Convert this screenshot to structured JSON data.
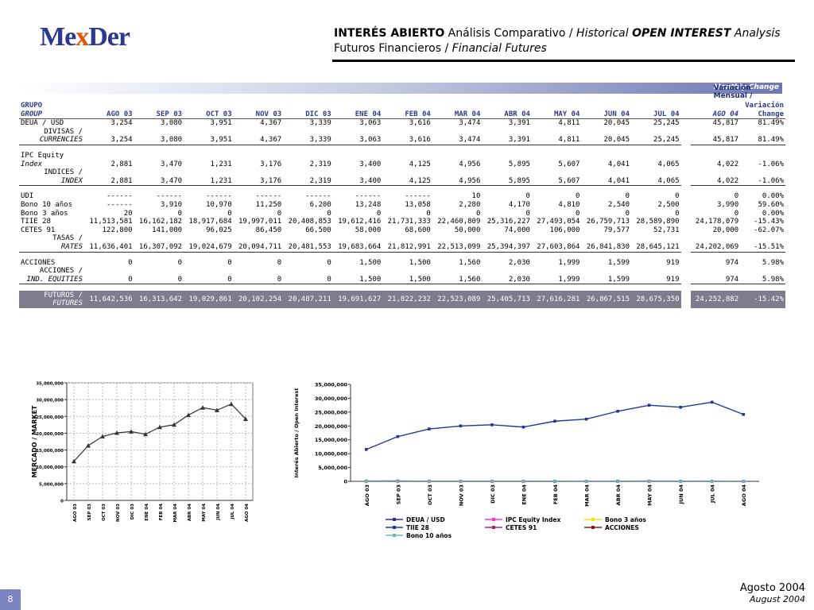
{
  "logo": {
    "p1": "Me",
    "x": "x",
    "p2": "Der"
  },
  "header": {
    "b1": "INTERÉS ABIERTO",
    "n1": " Análisis Comparativo / ",
    "i1": "Historical ",
    "b2": "OPEN INTEREST",
    "i2": " Analysis",
    "line2a": "Futuros Financieros / ",
    "line2b": "Financial Futures"
  },
  "banner": {
    "es": "Variación Mensual / ",
    "en": "Monthly Change"
  },
  "table": {
    "h1": [
      "GRUPO",
      "Variación"
    ],
    "h2": [
      "GROUP",
      "AGO 03",
      "SEP 03",
      "OCT 03",
      "NOV 03",
      "DIC 03",
      "ENE 04",
      "FEB 04",
      "MAR 04",
      "ABR 04",
      "MAY 04",
      "JUN 04",
      "JUL 04",
      "AGO 04",
      "Change"
    ],
    "rows": [
      {
        "cls": "",
        "a": "DEUA / USD",
        "v": [
          "3,254",
          "3,080",
          "3,951",
          "4,367",
          "3,339",
          "3,063",
          "3,616",
          "3,474",
          "3,391",
          "4,811",
          "20,045",
          "25,245"
        ],
        "ago04": "45,817",
        "chg": "81.49%"
      },
      {
        "cls": "r",
        "a": "DIVISAS /",
        "v": [
          "",
          "",
          "",
          "",
          "",
          "",
          "",
          "",
          "",
          "",
          "",
          ""
        ],
        "ago04": "",
        "chg": ""
      },
      {
        "cls": "r sep",
        "a": "CURRENCIES",
        "v": [
          "3,254",
          "3,080",
          "3,951",
          "4,367",
          "3,339",
          "3,063",
          "3,616",
          "3,474",
          "3,391",
          "4,811",
          "20,045",
          "25,245"
        ],
        "ago04": "45,817",
        "chg": "81.49%"
      },
      {
        "cls": "blank",
        "a": "",
        "v": [
          "",
          "",
          "",
          "",
          "",
          "",
          "",
          "",
          "",
          "",
          "",
          ""
        ],
        "ago04": "",
        "chg": ""
      },
      {
        "cls": "",
        "a": "IPC Equity",
        "v": [
          "",
          "",
          "",
          "",
          "",
          "",
          "",
          "",
          "",
          "",
          "",
          ""
        ],
        "ago04": "",
        "chg": ""
      },
      {
        "cls": "i",
        "a": "Index",
        "v": [
          "2,881",
          "3,470",
          "1,231",
          "3,176",
          "2,319",
          "3,400",
          "4,125",
          "4,956",
          "5,895",
          "5,607",
          "4,041",
          "4,065"
        ],
        "ago04": "4,022",
        "chg": "-1.06%"
      },
      {
        "cls": "r",
        "a": "INDICES /",
        "v": [
          "",
          "",
          "",
          "",
          "",
          "",
          "",
          "",
          "",
          "",
          "",
          ""
        ],
        "ago04": "",
        "chg": ""
      },
      {
        "cls": "r sep",
        "a": "INDEX",
        "v": [
          "2,881",
          "3,470",
          "1,231",
          "3,176",
          "2,319",
          "3,400",
          "4,125",
          "4,956",
          "5,895",
          "5,607",
          "4,041",
          "4,065"
        ],
        "ago04": "4,022",
        "chg": "-1.06%"
      },
      {
        "cls": "blank",
        "a": "",
        "v": [
          "",
          "",
          "",
          "",
          "",
          "",
          "",
          "",
          "",
          "",
          "",
          ""
        ],
        "ago04": "",
        "chg": ""
      },
      {
        "cls": "",
        "a": "UDI",
        "v": [
          "------",
          "------",
          "------",
          "------",
          "------",
          "------",
          "------",
          "10",
          "0",
          "0",
          "0",
          "0"
        ],
        "ago04": "0",
        "chg": "0.00%"
      },
      {
        "cls": "",
        "a": "Bono 10 años",
        "v": [
          "------",
          "3,910",
          "10,970",
          "11,250",
          "6,200",
          "13,248",
          "13,058",
          "2,280",
          "4,170",
          "4,810",
          "2,540",
          "2,500"
        ],
        "ago04": "3,990",
        "chg": "59.60%"
      },
      {
        "cls": "",
        "a": "Bono 3 años",
        "v": [
          "20",
          "0",
          "0",
          "0",
          "0",
          "0",
          "0",
          "0",
          "0",
          "0",
          "0",
          "0"
        ],
        "ago04": "0",
        "chg": "0.00%"
      },
      {
        "cls": "",
        "a": "TIIE 28",
        "v": [
          "11,513,581",
          "16,162,182",
          "18,917,684",
          "19,997,011",
          "20,408,853",
          "19,612,416",
          "21,731,333",
          "22,460,809",
          "25,316,227",
          "27,493,054",
          "26,759,713",
          "28,589,890"
        ],
        "ago04": "24,178,079",
        "chg": "-15.43%"
      },
      {
        "cls": "",
        "a": "CETES 91",
        "v": [
          "122,800",
          "141,000",
          "96,025",
          "86,450",
          "66,500",
          "58,000",
          "68,600",
          "50,000",
          "74,000",
          "106,000",
          "79,577",
          "52,731"
        ],
        "ago04": "20,000",
        "chg": "-62.07%"
      },
      {
        "cls": "r",
        "a": "TASAS /",
        "v": [
          "",
          "",
          "",
          "",
          "",
          "",
          "",
          "",
          "",
          "",
          "",
          ""
        ],
        "ago04": "",
        "chg": ""
      },
      {
        "cls": "r sep",
        "a": "RATES",
        "v": [
          "11,636,401",
          "16,307,092",
          "19,024,679",
          "20,094,711",
          "20,481,553",
          "19,683,664",
          "21,812,991",
          "22,513,099",
          "25,394,397",
          "27,603,864",
          "26,841,830",
          "28,645,121"
        ],
        "ago04": "24,202,069",
        "chg": "-15.51%"
      },
      {
        "cls": "blank",
        "a": "",
        "v": [
          "",
          "",
          "",
          "",
          "",
          "",
          "",
          "",
          "",
          "",
          "",
          ""
        ],
        "ago04": "",
        "chg": ""
      },
      {
        "cls": "",
        "a": "ACCIONES",
        "v": [
          "0",
          "0",
          "0",
          "0",
          "0",
          "1,500",
          "1,500",
          "1,560",
          "2,030",
          "1,999",
          "1,599",
          "919"
        ],
        "ago04": "974",
        "chg": "5.98%"
      },
      {
        "cls": "r",
        "a": "ACCIONES /",
        "v": [
          "",
          "",
          "",
          "",
          "",
          "",
          "",
          "",
          "",
          "",
          "",
          ""
        ],
        "ago04": "",
        "chg": ""
      },
      {
        "cls": "r sep",
        "a": "IND. EQUITIES",
        "v": [
          "0",
          "0",
          "0",
          "0",
          "0",
          "1,500",
          "1,500",
          "1,560",
          "2,030",
          "1,999",
          "1,599",
          "919"
        ],
        "ago04": "974",
        "chg": "5.98%"
      },
      {
        "cls": "blank",
        "a": "",
        "v": [
          "",
          "",
          "",
          "",
          "",
          "",
          "",
          "",
          "",
          "",
          "",
          ""
        ],
        "ago04": "",
        "chg": ""
      }
    ],
    "futuros": {
      "a1": "FUTUROS /",
      "a2": "FUTURES",
      "v": [
        "11,642,536",
        "16,313,642",
        "19,029,861",
        "20,102,254",
        "20,487,211",
        "19,691,627",
        "21,822,232",
        "22,523,089",
        "25,405,713",
        "27,616,281",
        "26,867,515",
        "28,675,350"
      ],
      "ago04": "24,252,882",
      "chg": "-15.42%"
    }
  },
  "chart_data": [
    {
      "type": "line",
      "title": "",
      "xlabel": "",
      "ylabel": "MERCADO / MARKET",
      "categories": [
        "AGO 03",
        "SEP 03",
        "OCT 03",
        "NOV 03",
        "DIC 03",
        "ENE 04",
        "FEB 04",
        "MAR 04",
        "ABR 04",
        "MAY 04",
        "JUN 04",
        "JUL 04",
        "AGO 04"
      ],
      "y_ticks": [
        "0",
        "5,000,000",
        "10,000,000",
        "15,000,000",
        "20,000,000",
        "25,000,000",
        "30,000,000",
        "35,000,000"
      ],
      "ylim": [
        0,
        35000000
      ],
      "grid": true,
      "series": [
        {
          "values": [
            11642536,
            16313642,
            19029861,
            20102254,
            20487211,
            19691627,
            21822232,
            22523089,
            25405713,
            27616281,
            26867515,
            28675350,
            24252882
          ],
          "color": "#333333"
        }
      ]
    },
    {
      "type": "line",
      "title": "",
      "xlabel": "",
      "ylabel": "Interés Abierto / Open Interest",
      "categories": [
        "AGO 03",
        "SEP 03",
        "OCT 03",
        "NOV 03",
        "DIC 03",
        "ENE 04",
        "FEB 04",
        "MAR 04",
        "ABR 04",
        "MAY 04",
        "JUN 04",
        "JUL 04",
        "AGO 04"
      ],
      "y_ticks": [
        "0",
        "5,000,000",
        "10,000,000",
        "15,000,000",
        "20,000,000",
        "25,000,000",
        "30,000,000",
        "35,000,000"
      ],
      "ylim": [
        0,
        35000000
      ],
      "grid": false,
      "legend": "bottom",
      "series": [
        {
          "name": "DEUA / USD",
          "color": "#2b2b9a",
          "values": [
            3254,
            3080,
            3951,
            4367,
            3339,
            3063,
            3616,
            3474,
            3391,
            4811,
            20045,
            25245,
            45817
          ]
        },
        {
          "name": "IPC Equity Index",
          "color": "#ff33cc",
          "values": [
            2881,
            3470,
            1231,
            3176,
            2319,
            3400,
            4125,
            4956,
            5895,
            5607,
            4041,
            4065,
            4022
          ]
        },
        {
          "name": "Bono 3 años",
          "color": "#f2e600",
          "values": [
            20,
            0,
            0,
            0,
            0,
            0,
            0,
            0,
            0,
            0,
            0,
            0,
            0
          ]
        },
        {
          "name": "TIIE 28",
          "color": "#1f3a93",
          "values": [
            11513581,
            16162182,
            18917684,
            19997011,
            20408853,
            19612416,
            21731333,
            22460809,
            25316227,
            27493054,
            26759713,
            28589890,
            24178079
          ]
        },
        {
          "name": "CETES 91",
          "color": "#a0287a",
          "values": [
            122800,
            141000,
            96025,
            86450,
            66500,
            58000,
            68600,
            50000,
            74000,
            106000,
            79577,
            52731,
            20000
          ]
        },
        {
          "name": "ACCIONES",
          "color": "#8b1a1a",
          "values": [
            0,
            0,
            0,
            0,
            0,
            1500,
            1500,
            1560,
            2030,
            1999,
            1599,
            919,
            974
          ]
        },
        {
          "name": "Bono 10 años",
          "color": "#6fb7c6",
          "values": [
            0,
            3910,
            10970,
            11250,
            6200,
            13248,
            13058,
            2280,
            4170,
            4810,
            2540,
            2500,
            3990
          ]
        }
      ]
    }
  ],
  "footer": {
    "date_es": "Agosto 2004",
    "date_en": "August 2004",
    "page": "8"
  }
}
